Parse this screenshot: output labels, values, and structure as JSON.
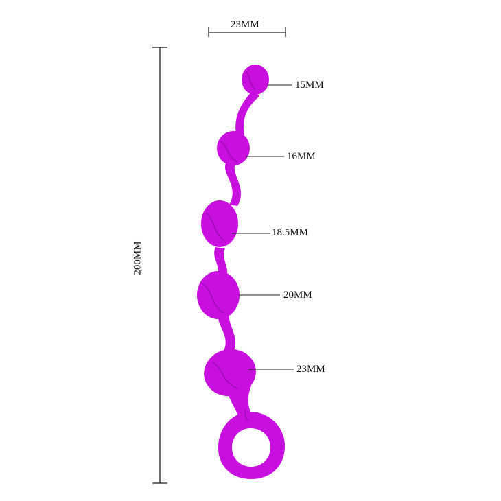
{
  "dimensions": {
    "width_label": "23MM",
    "length_label": "200MM"
  },
  "beads": [
    {
      "label": "15MM"
    },
    {
      "label": "16MM"
    },
    {
      "label": "18.5MM"
    },
    {
      "label": "20MM"
    },
    {
      "label": "23MM"
    }
  ],
  "colors": {
    "product": "#c80fe0",
    "product_shade": "#a60bbd",
    "lines": "#222222"
  }
}
